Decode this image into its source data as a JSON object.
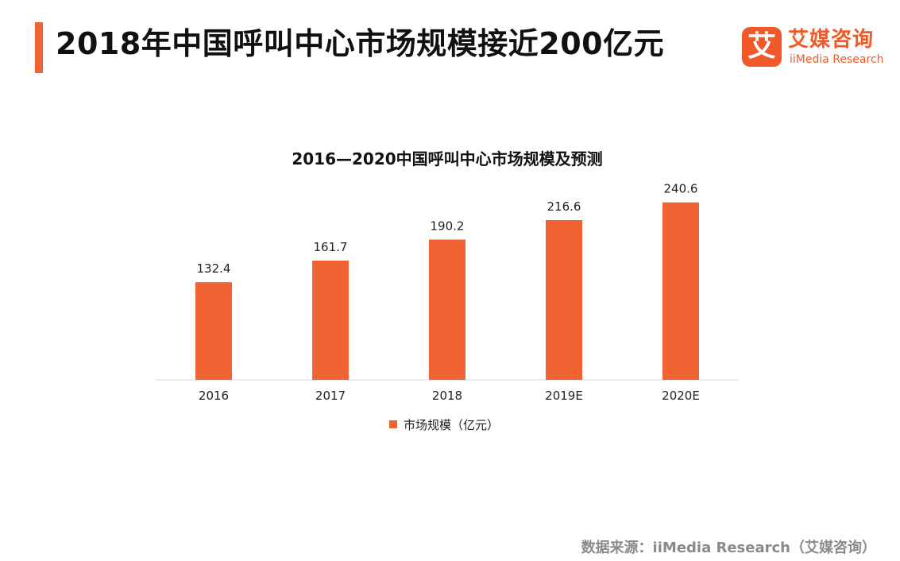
{
  "headline": "2018年中国呼叫中心市场规模接近200亿元",
  "logo": {
    "mark": "艾",
    "name": "艾媒咨询",
    "sub": "iiMedia Research"
  },
  "source": "数据来源：iiMedia Research（艾媒咨询）",
  "colors": {
    "accent": "#f26334",
    "bar": "#f26334",
    "axis": "#d9d9d9",
    "source": "#8a8a8a"
  },
  "chart_data": {
    "type": "bar",
    "title": "2016—2020中国呼叫中心市场规模及预测",
    "categories": [
      "2016",
      "2017",
      "2018",
      "2019E",
      "2020E"
    ],
    "series": [
      {
        "name": "市场规模（亿元）",
        "values": [
          132.4,
          161.7,
          190.2,
          216.6,
          240.6
        ],
        "labels": [
          "132.4",
          "161.7",
          "190.2",
          "216.6",
          "240.6"
        ]
      }
    ],
    "xlabel": "",
    "ylabel": "",
    "ylim": [
      0,
      270
    ],
    "grid": false,
    "legend": "bottom"
  }
}
